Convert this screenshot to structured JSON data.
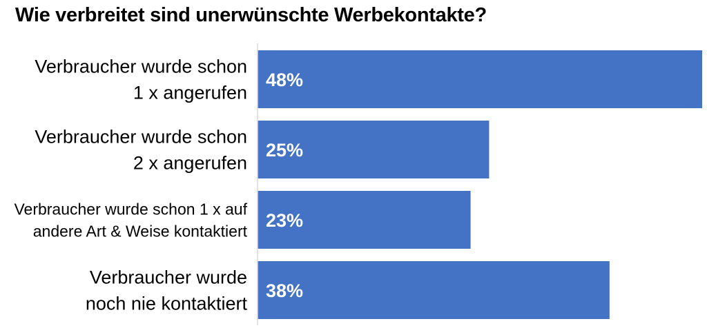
{
  "chart_data": {
    "type": "bar",
    "orientation": "horizontal",
    "title": "Wie verbreitet sind unerwünschte Werbekontakte?",
    "categories": [
      [
        "Verbraucher wurde schon",
        "1 x angerufen"
      ],
      [
        "Verbraucher wurde schon",
        "2 x angerufen"
      ],
      [
        "Verbraucher wurde schon 1 x auf",
        "andere Art & Weise kontaktiert"
      ],
      [
        "Verbraucher wurde",
        "noch nie kontaktiert"
      ]
    ],
    "values": [
      48,
      25,
      23,
      38
    ],
    "data_labels": [
      "48%",
      "25%",
      "23%",
      "38%"
    ],
    "unit": "%",
    "xlim": [
      0,
      48
    ],
    "grid": false,
    "legend": "none",
    "colors": {
      "bar": "#4472C4",
      "label": "#FFFFFF",
      "axis": "#D9D9D9"
    }
  }
}
